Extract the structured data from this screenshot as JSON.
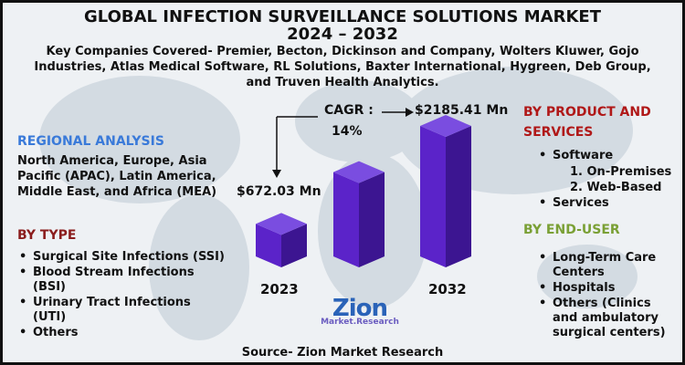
{
  "title_line1": "GLOBAL INFECTION SURVEILLANCE SOLUTIONS MARKET",
  "title_line2": "2024 – 2032",
  "subtitle": "Key Companies Covered- Premier, Becton, Dickinson and Company, Wolters Kluwer, Gojo Industries, Atlas Medical Software, RL Solutions, Baxter International, Hygreen, Deb Group, and Truven Health Analytics.",
  "regional": {
    "heading": "REGIONAL ANALYSIS",
    "text": "North America, Europe, Asia Pacific (APAC), Latin America, Middle East, and Africa (MEA)"
  },
  "by_type": {
    "heading": "BY TYPE",
    "items": [
      "Surgical Site Infections (SSI)",
      "Blood Stream Infections (BSI)",
      "Urinary Tract Infections (UTI)",
      "Others"
    ]
  },
  "by_product": {
    "heading_line1": "BY PRODUCT AND",
    "heading_line2": "SERVICES",
    "software": "Software",
    "sub1": "1. On-Premises",
    "sub2": "2. Web-Based",
    "services": "Services"
  },
  "by_end_user": {
    "heading": "BY END-USER",
    "items": [
      "Long-Term Care Centers",
      "Hospitals",
      "Others (Clinics and ambulatory surgical centers)"
    ]
  },
  "cagr_label": "CAGR :",
  "cagr_value": "14%",
  "logo": {
    "main": "Zion",
    "sub": "Market.Research"
  },
  "source": "Source- Zion Market Research",
  "colors": {
    "bar_front": "#5b23c9",
    "bar_side": "#3c1591",
    "bar_top": "#7a4de0"
  },
  "chart_data": {
    "type": "bar",
    "title": "Global Infection Surveillance Solutions Market",
    "categories": [
      "2023",
      "",
      "2032"
    ],
    "values": [
      672.03,
      null,
      2185.41
    ],
    "value_labels": [
      "$672.03 Mn",
      "",
      "$2185.41 Mn"
    ],
    "unit": "USD Mn",
    "cagr": "14%"
  }
}
